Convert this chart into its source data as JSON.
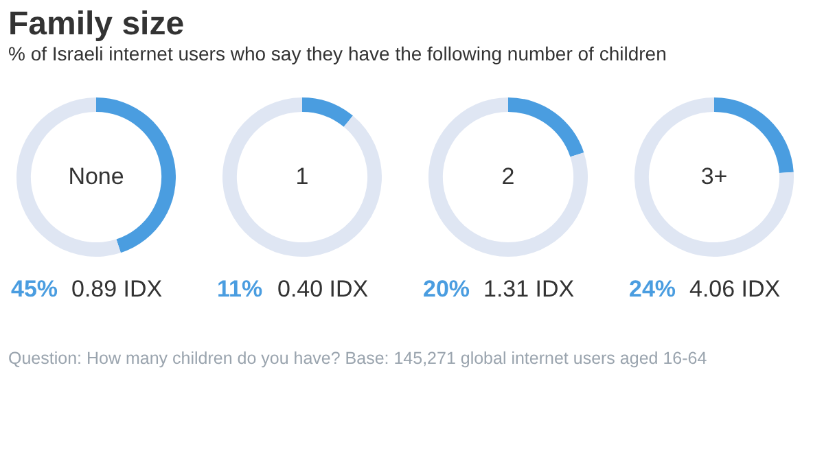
{
  "chart_data": [
    {
      "type": "donut",
      "title": "Family size",
      "subtitle": "% of Israeli internet users who say they have the following number of children",
      "categories": [
        "None",
        null
      ],
      "values": [
        45,
        55
      ],
      "colors": [
        "#4a9de0",
        "#dfe6f3"
      ],
      "annotations": [
        "45%",
        "0.89 IDX"
      ]
    },
    {
      "type": "donut",
      "categories": [
        "1",
        null
      ],
      "values": [
        11,
        89
      ],
      "colors": [
        "#4a9de0",
        "#dfe6f3"
      ],
      "annotations": [
        "11%",
        "0.40 IDX"
      ]
    },
    {
      "type": "donut",
      "categories": [
        "2",
        null
      ],
      "values": [
        20,
        80
      ],
      "colors": [
        "#4a9de0",
        "#dfe6f3"
      ],
      "annotations": [
        "20%",
        "1.31 IDX"
      ]
    },
    {
      "type": "donut",
      "categories": [
        "3+",
        null
      ],
      "values": [
        24,
        76
      ],
      "colors": [
        "#4a9de0",
        "#dfe6f3"
      ],
      "annotations": [
        "24%",
        "4.06 IDX",
        "Question: How many children do you have? Base: 145,271 global internet users aged 16-64"
      ]
    }
  ]
}
